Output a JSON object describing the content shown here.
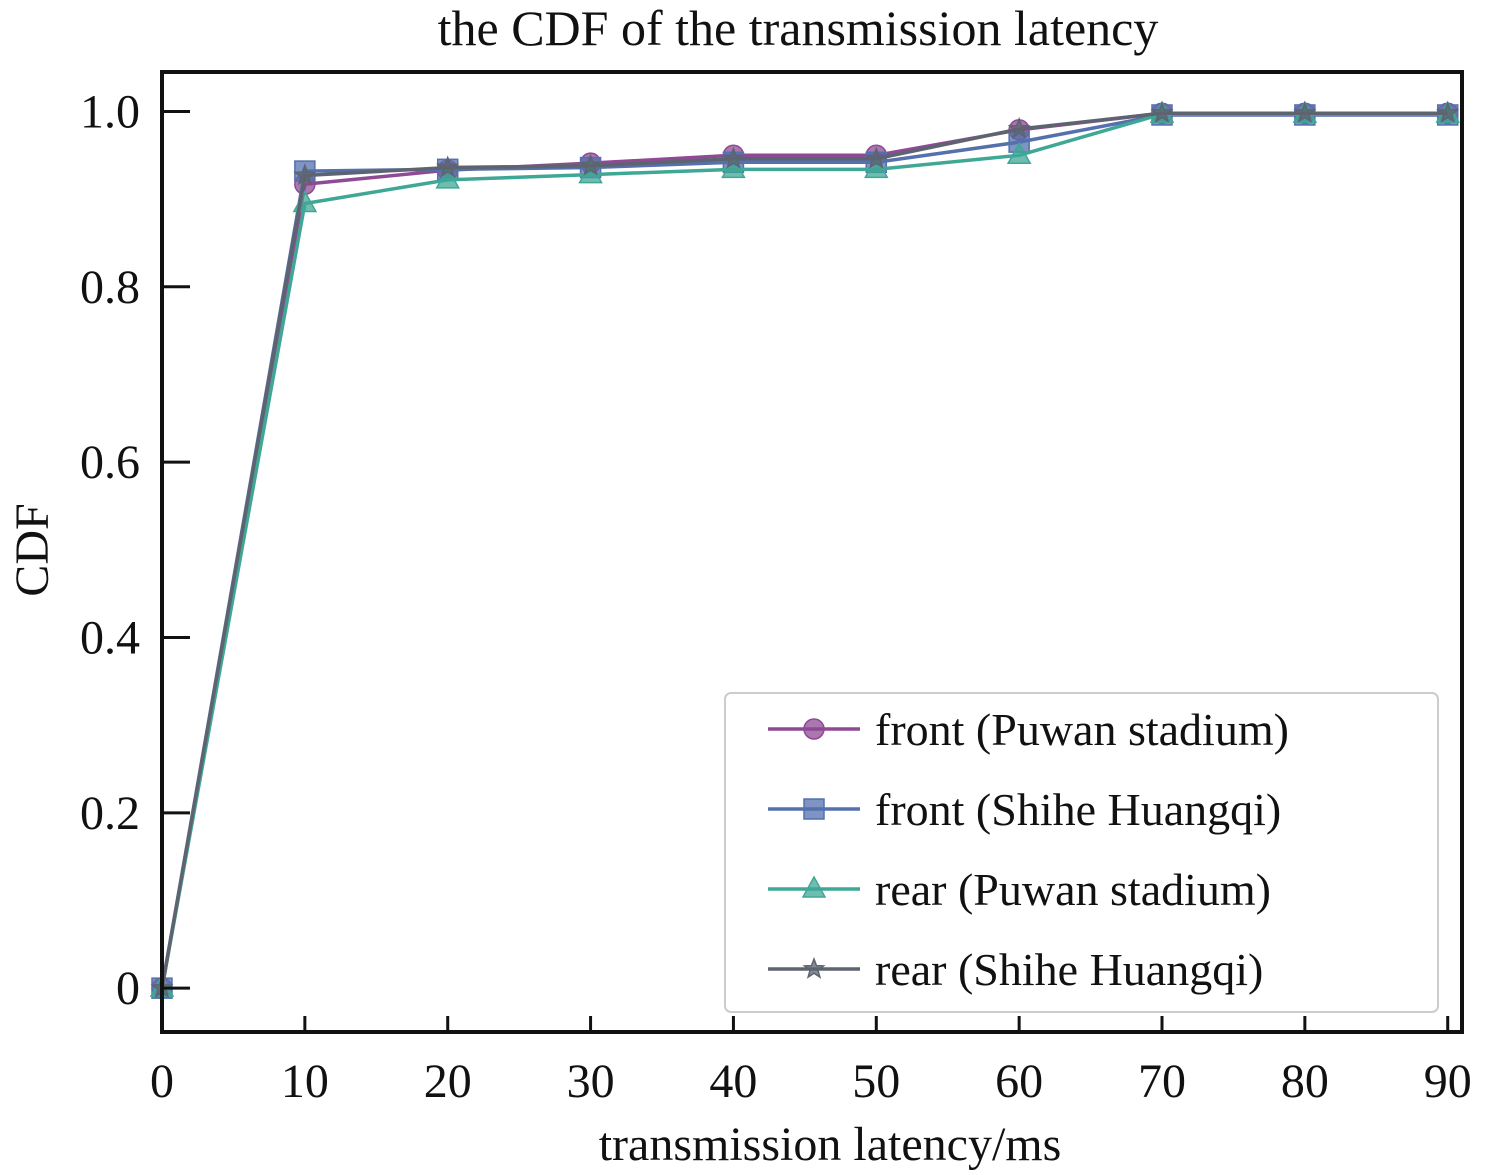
{
  "chart_data": {
    "type": "line",
    "title": "the CDF of the transmission latency",
    "xlabel": "transmission latency/ms",
    "ylabel": "CDF",
    "xlim": [
      0,
      91
    ],
    "ylim": [
      -0.05,
      1.045
    ],
    "xticks": [
      0,
      10,
      20,
      30,
      40,
      50,
      60,
      70,
      80,
      90
    ],
    "xtick_labels": [
      "0",
      "10",
      "20",
      "30",
      "40",
      "50",
      "60",
      "70",
      "80",
      "90"
    ],
    "yticks": [
      0,
      0.2,
      0.4,
      0.6,
      0.8,
      1.0
    ],
    "ytick_labels": [
      "0",
      "0.2",
      "0.4",
      "0.6",
      "0.8",
      "1.0"
    ],
    "grid": false,
    "legend_position": "lower-right",
    "x": [
      0,
      10,
      20,
      30,
      40,
      50,
      60,
      70,
      80,
      90
    ],
    "series": [
      {
        "name": "front (Puwan stadium)",
        "color": "#8e4a94",
        "marker": "circle",
        "values": [
          0,
          0.917,
          0.933,
          0.941,
          0.95,
          0.95,
          0.979,
          0.998,
          0.998,
          0.998
        ]
      },
      {
        "name": "front (Shihe Huangqi)",
        "color": "#5470ad",
        "marker": "square",
        "values": [
          0,
          0.932,
          0.934,
          0.936,
          0.942,
          0.942,
          0.965,
          0.996,
          0.996,
          0.996
        ]
      },
      {
        "name": "rear (Puwan stadium)",
        "color": "#3fa796",
        "marker": "triangle",
        "values": [
          0,
          0.895,
          0.922,
          0.928,
          0.934,
          0.934,
          0.95,
          0.997,
          0.997,
          0.997
        ]
      },
      {
        "name": "rear (Shihe Huangqi)",
        "color": "#5d6470",
        "marker": "star",
        "values": [
          0,
          0.927,
          0.936,
          0.938,
          0.946,
          0.946,
          0.98,
          0.998,
          0.998,
          0.998
        ]
      }
    ]
  }
}
